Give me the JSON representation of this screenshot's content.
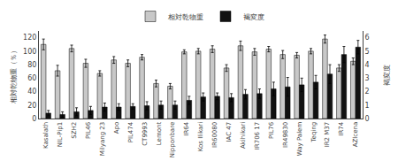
{
  "chart_data": {
    "type": "bar",
    "categories": [
      "Kasalath",
      "NIL-Pip1",
      "SZH2",
      "PIL46",
      "Milyang 23",
      "Apo",
      "PIL474",
      "CT9993",
      "Lemont",
      "Nipponbare",
      "IR64",
      "Kos Ilikari",
      "IR60080",
      "IAC 47",
      "Akihikari",
      "IR706 17",
      "PIL76",
      "IR49830",
      "Way Palem",
      "Teqing",
      "IR2 M37",
      "IR74",
      "AZlcena"
    ],
    "series": [
      {
        "name": "相対乾物重",
        "color": "#c8c8c8",
        "axis": "y",
        "values": [
          110,
          71,
          104,
          82,
          67,
          87,
          82,
          91,
          52,
          48,
          99,
          100,
          103,
          75,
          108,
          99,
          103,
          95,
          94,
          100,
          118,
          75,
          85
        ],
        "errors": [
          8,
          8,
          5,
          6,
          4,
          5,
          5,
          4,
          5,
          4,
          3,
          4,
          5,
          5,
          7,
          5,
          4,
          6,
          4,
          4,
          6,
          5,
          5
        ]
      },
      {
        "name": "褐変度",
        "color": "#111111",
        "axis": "y2",
        "values": [
          0.4,
          0.3,
          0.5,
          0.6,
          0.85,
          0.85,
          0.9,
          0.95,
          1.0,
          1.0,
          1.35,
          1.6,
          1.65,
          1.55,
          1.8,
          1.85,
          2.2,
          2.35,
          2.5,
          2.7,
          3.3,
          4.75,
          5.3
        ],
        "errors": [
          0.2,
          0.2,
          0.3,
          0.3,
          0.3,
          0.25,
          0.2,
          0.3,
          0.3,
          0.3,
          0.3,
          0.3,
          0.25,
          0.3,
          0.35,
          0.35,
          0.5,
          0.7,
          0.5,
          0.5,
          0.7,
          0.6,
          0.5
        ]
      }
    ],
    "ylabel": "相対乾物重（％）",
    "y2label": "褐変度",
    "ylim": [
      0,
      130
    ],
    "yticks": [
      0,
      20,
      40,
      60,
      80,
      100,
      120
    ],
    "y2lim": [
      0,
      6.5
    ],
    "y2ticks": [
      0,
      1,
      2,
      3,
      4,
      5,
      6
    ],
    "grid": false,
    "legend": "upper center"
  }
}
